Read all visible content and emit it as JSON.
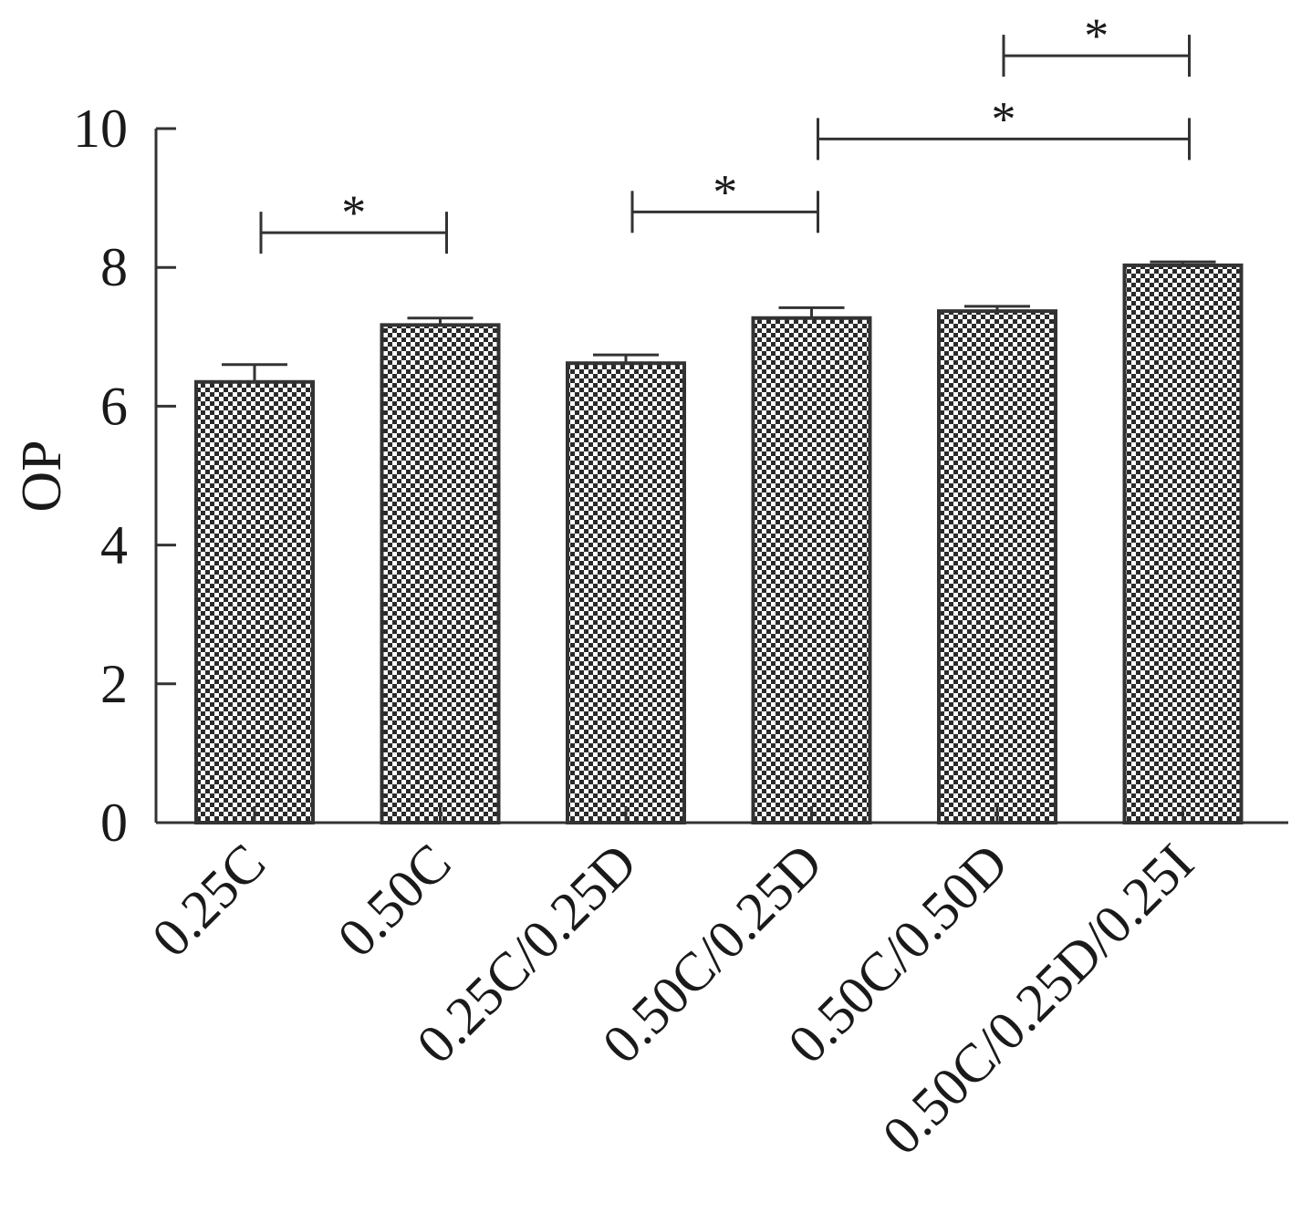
{
  "chart_data": {
    "type": "bar",
    "title": "",
    "xlabel": "",
    "ylabel": "OP",
    "ylim": [
      0,
      10
    ],
    "yticks": [
      0,
      2,
      4,
      6,
      8,
      10
    ],
    "ytick_labels": [
      "0",
      "2",
      "4",
      "6",
      "8",
      "10"
    ],
    "grid": false,
    "legend": "none",
    "categories": [
      "0.25C",
      "0.50C",
      "0.25C/0.25D",
      "0.50C/0.25D",
      "0.50C/0.50D",
      "0.50C/0.25D/0.25I"
    ],
    "values": [
      6.35,
      7.17,
      6.62,
      7.27,
      7.37,
      8.03
    ],
    "errors": [
      0.25,
      0.1,
      0.12,
      0.15,
      0.07,
      0.05
    ],
    "significance": [
      {
        "from": 0,
        "to": 1,
        "label": "*",
        "y": 8.5
      },
      {
        "from": 2,
        "to": 3,
        "label": "*",
        "y": 8.8
      },
      {
        "from": 3,
        "to": 5,
        "label": "*",
        "y": 9.85
      },
      {
        "from": 4,
        "to": 5,
        "label": "*",
        "y": 11.05
      }
    ],
    "colors": {
      "axis": "#333333",
      "bar_border": "#333333",
      "bar_pattern_dark": "#2a2a2a",
      "bar_pattern_light": "#ffffff"
    }
  }
}
